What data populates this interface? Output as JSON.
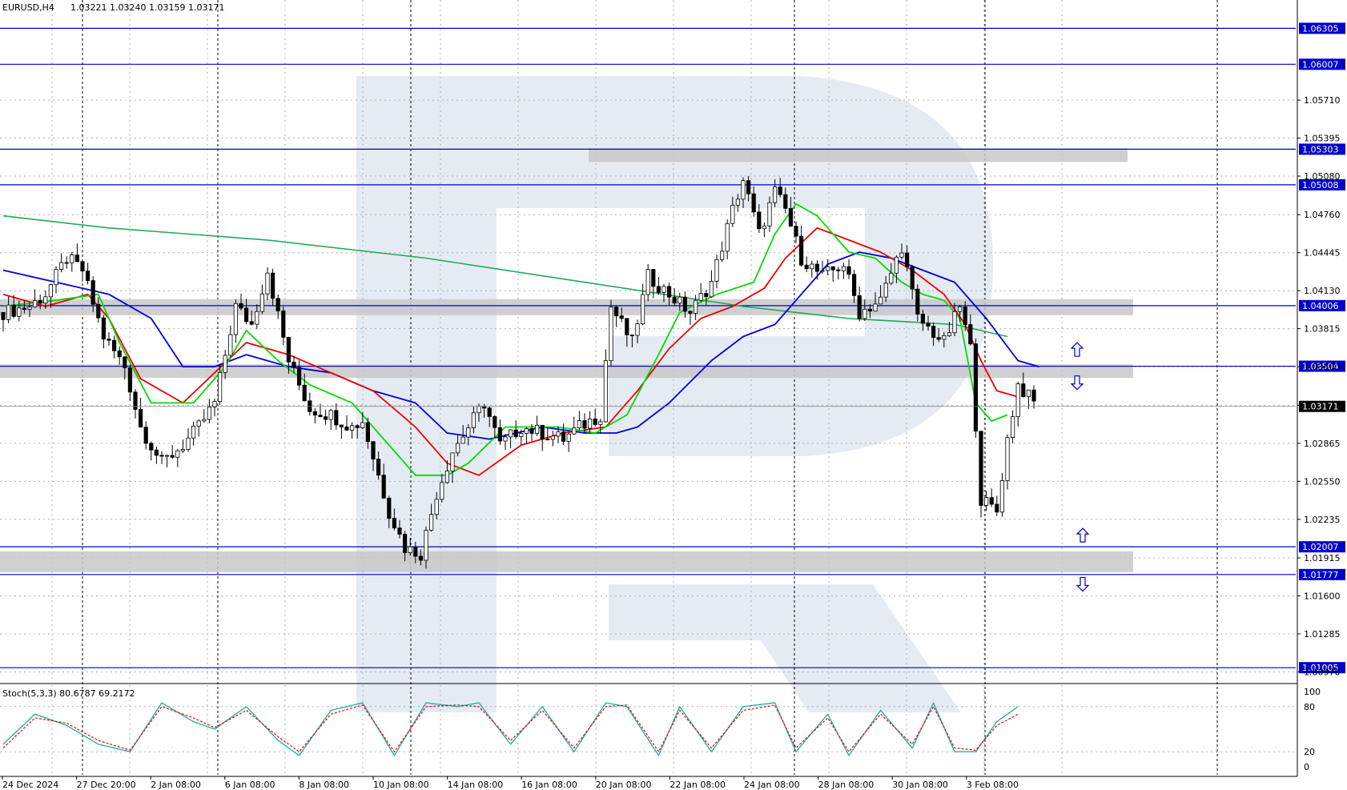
{
  "header": {
    "symbol": "EURUSD,H4",
    "ohlc": "1.03221 1.03240 1.03159 1.03171"
  },
  "indicator": {
    "label": "Stoch(5,3,3) 80.6787 69.2172",
    "levels": [
      "100",
      "80",
      "20",
      "0"
    ]
  },
  "current_price": "1.03171",
  "colors": {
    "bull": "#ffffff",
    "bear": "#000000",
    "level_line": "#0000cc",
    "level_badge": "#0000cc",
    "ma_fast": "#00dd00",
    "ma_mid": "#ee0000",
    "ma_slow": "#0000dd",
    "ma_long": "#22aa55",
    "zone": "#c8c8c8",
    "stoch_main": "#20b2aa",
    "stoch_signal": "#ff0000",
    "watermark": "#dfe6f0",
    "arrow": "#0000cc"
  },
  "chart_data": {
    "type": "candlestick",
    "price_axis": {
      "ticks": [
        "1.05710",
        "1.05395",
        "1.05080",
        "1.04760",
        "1.04445",
        "1.04130",
        "1.03815",
        "1.03500",
        "1.03180",
        "1.02865",
        "1.02550",
        "1.02235",
        "1.01915",
        "1.01600",
        "1.01285",
        "1.00970"
      ],
      "range": [
        1.009,
        1.065
      ]
    },
    "time_axis": {
      "labels": [
        "24 Dec 2024",
        "27 Dec 20:00",
        "2 Jan 08:00",
        "6 Jan 08:00",
        "8 Jan 08:00",
        "10 Jan 08:00",
        "14 Jan 08:00",
        "16 Jan 08:00",
        "20 Jan 08:00",
        "22 Jan 08:00",
        "24 Jan 08:00",
        "28 Jan 08:00",
        "30 Jan 08:00",
        "3 Feb 08:00"
      ]
    },
    "levels": [
      "1.06305",
      "1.06007",
      "1.05303",
      "1.05008",
      "1.04006",
      "1.03504",
      "1.02007",
      "1.01777",
      "1.01005"
    ],
    "zones": [
      {
        "from": 1.0525,
        "to": 1.0531
      },
      {
        "from": 1.0398,
        "to": 1.0406
      },
      {
        "from": 1.0346,
        "to": 1.0352
      },
      {
        "from": 1.0185,
        "to": 1.0197
      }
    ],
    "arrows": [
      {
        "dir": "up",
        "price": 1.0364
      },
      {
        "dir": "down",
        "price": 1.0337
      },
      {
        "dir": "up",
        "price": 1.021
      },
      {
        "dir": "down",
        "price": 1.017
      }
    ],
    "price_path": [
      [
        0,
        1.0395
      ],
      [
        5,
        1.04
      ],
      [
        8,
        1.041
      ],
      [
        12,
        1.044
      ],
      [
        15,
        1.043
      ],
      [
        19,
        1.0375
      ],
      [
        23,
        1.035
      ],
      [
        26,
        1.03
      ],
      [
        30,
        1.027
      ],
      [
        34,
        1.0285
      ],
      [
        37,
        1.03
      ],
      [
        40,
        1.032
      ],
      [
        44,
        1.04
      ],
      [
        47,
        1.0385
      ],
      [
        50,
        1.043
      ],
      [
        54,
        1.0355
      ],
      [
        58,
        1.0315
      ],
      [
        62,
        1.031
      ],
      [
        66,
        1.03
      ],
      [
        68,
        1.0305
      ],
      [
        70,
        1.0275
      ],
      [
        73,
        1.023
      ],
      [
        76,
        1.02
      ],
      [
        79,
        1.0195
      ],
      [
        82,
        1.0245
      ],
      [
        85,
        1.028
      ],
      [
        88,
        1.03
      ],
      [
        91,
        1.032
      ],
      [
        94,
        1.0285
      ],
      [
        98,
        1.03
      ],
      [
        102,
        1.0295
      ],
      [
        106,
        1.029
      ],
      [
        109,
        1.03
      ],
      [
        113,
        1.031
      ],
      [
        115,
        1.04
      ],
      [
        119,
        1.037
      ],
      [
        122,
        1.0425
      ],
      [
        126,
        1.041
      ],
      [
        130,
        1.0395
      ],
      [
        134,
        1.042
      ],
      [
        138,
        1.048
      ],
      [
        140,
        1.0505
      ],
      [
        143,
        1.046
      ],
      [
        146,
        1.0495
      ],
      [
        148,
        1.048
      ],
      [
        151,
        1.044
      ],
      [
        155,
        1.0425
      ],
      [
        159,
        1.0435
      ],
      [
        162,
        1.0395
      ],
      [
        166,
        1.0405
      ],
      [
        170,
        1.045
      ],
      [
        173,
        1.039
      ],
      [
        178,
        1.037
      ],
      [
        181,
        1.04
      ],
      [
        183,
        1.0365
      ],
      [
        185,
        1.024
      ],
      [
        188,
        1.023
      ],
      [
        190,
        1.029
      ],
      [
        192,
        1.0335
      ],
      [
        195,
        1.032
      ]
    ],
    "ma_fast": [
      [
        0,
        1.04
      ],
      [
        10,
        1.0405
      ],
      [
        18,
        1.041
      ],
      [
        22,
        1.037
      ],
      [
        28,
        1.032
      ],
      [
        36,
        1.032
      ],
      [
        42,
        1.035
      ],
      [
        46,
        1.038
      ],
      [
        52,
        1.0355
      ],
      [
        58,
        1.0335
      ],
      [
        66,
        1.032
      ],
      [
        72,
        1.029
      ],
      [
        78,
        1.026
      ],
      [
        84,
        1.026
      ],
      [
        88,
        1.027
      ],
      [
        95,
        1.03
      ],
      [
        105,
        1.03
      ],
      [
        112,
        1.0295
      ],
      [
        118,
        1.031
      ],
      [
        124,
        1.036
      ],
      [
        128,
        1.0395
      ],
      [
        135,
        1.041
      ],
      [
        142,
        1.042
      ],
      [
        146,
        1.046
      ],
      [
        150,
        1.0485
      ],
      [
        154,
        1.0475
      ],
      [
        160,
        1.0445
      ],
      [
        165,
        1.044
      ],
      [
        170,
        1.042
      ],
      [
        174,
        1.041
      ],
      [
        178,
        1.0405
      ],
      [
        181,
        1.039
      ],
      [
        184,
        1.032
      ],
      [
        187,
        1.0305
      ],
      [
        190,
        1.031
      ]
    ],
    "ma_mid": [
      [
        0,
        1.041
      ],
      [
        8,
        1.04
      ],
      [
        16,
        1.041
      ],
      [
        20,
        1.039
      ],
      [
        26,
        1.034
      ],
      [
        34,
        1.032
      ],
      [
        40,
        1.0345
      ],
      [
        46,
        1.037
      ],
      [
        54,
        1.036
      ],
      [
        62,
        1.0345
      ],
      [
        70,
        1.033
      ],
      [
        78,
        1.03
      ],
      [
        84,
        1.027
      ],
      [
        90,
        1.026
      ],
      [
        98,
        1.0285
      ],
      [
        106,
        1.0295
      ],
      [
        114,
        1.03
      ],
      [
        120,
        1.033
      ],
      [
        126,
        1.0365
      ],
      [
        132,
        1.039
      ],
      [
        138,
        1.04
      ],
      [
        144,
        1.0415
      ],
      [
        148,
        1.044
      ],
      [
        154,
        1.0465
      ],
      [
        160,
        1.0455
      ],
      [
        166,
        1.0445
      ],
      [
        172,
        1.043
      ],
      [
        178,
        1.041
      ],
      [
        182,
        1.0385
      ],
      [
        185,
        1.0355
      ],
      [
        188,
        1.033
      ],
      [
        192,
        1.0325
      ]
    ],
    "ma_slow": [
      [
        0,
        1.043
      ],
      [
        10,
        1.042
      ],
      [
        20,
        1.041
      ],
      [
        28,
        1.039
      ],
      [
        34,
        1.035
      ],
      [
        40,
        1.035
      ],
      [
        46,
        1.036
      ],
      [
        54,
        1.035
      ],
      [
        62,
        1.0345
      ],
      [
        70,
        1.033
      ],
      [
        78,
        1.032
      ],
      [
        84,
        1.0295
      ],
      [
        92,
        1.029
      ],
      [
        102,
        1.03
      ],
      [
        110,
        1.0295
      ],
      [
        116,
        1.0295
      ],
      [
        120,
        1.03
      ],
      [
        126,
        1.032
      ],
      [
        134,
        1.0355
      ],
      [
        140,
        1.0375
      ],
      [
        146,
        1.0385
      ],
      [
        150,
        1.0405
      ],
      [
        156,
        1.0435
      ],
      [
        162,
        1.0445
      ],
      [
        168,
        1.044
      ],
      [
        174,
        1.043
      ],
      [
        180,
        1.042
      ],
      [
        186,
        1.039
      ],
      [
        192,
        1.0355
      ],
      [
        196,
        1.035
      ]
    ],
    "ma_long": [
      [
        0,
        1.0475
      ],
      [
        20,
        1.0465
      ],
      [
        50,
        1.0455
      ],
      [
        80,
        1.044
      ],
      [
        110,
        1.042
      ],
      [
        140,
        1.04
      ],
      [
        160,
        1.039
      ],
      [
        180,
        1.0385
      ],
      [
        190,
        1.0375
      ]
    ],
    "stoch_main": [
      [
        0,
        30
      ],
      [
        6,
        70
      ],
      [
        12,
        55
      ],
      [
        18,
        30
      ],
      [
        24,
        20
      ],
      [
        30,
        85
      ],
      [
        36,
        60
      ],
      [
        40,
        50
      ],
      [
        46,
        80
      ],
      [
        52,
        35
      ],
      [
        56,
        15
      ],
      [
        62,
        75
      ],
      [
        68,
        85
      ],
      [
        74,
        15
      ],
      [
        80,
        85
      ],
      [
        86,
        80
      ],
      [
        90,
        85
      ],
      [
        96,
        30
      ],
      [
        102,
        80
      ],
      [
        108,
        20
      ],
      [
        114,
        85
      ],
      [
        118,
        80
      ],
      [
        124,
        15
      ],
      [
        128,
        80
      ],
      [
        134,
        20
      ],
      [
        140,
        80
      ],
      [
        146,
        85
      ],
      [
        150,
        20
      ],
      [
        156,
        70
      ],
      [
        160,
        15
      ],
      [
        166,
        75
      ],
      [
        172,
        25
      ],
      [
        176,
        85
      ],
      [
        180,
        20
      ],
      [
        184,
        20
      ],
      [
        188,
        60
      ],
      [
        192,
        80
      ]
    ],
    "stoch_signal": [
      [
        0,
        25
      ],
      [
        6,
        65
      ],
      [
        12,
        58
      ],
      [
        18,
        35
      ],
      [
        24,
        22
      ],
      [
        30,
        80
      ],
      [
        36,
        65
      ],
      [
        40,
        52
      ],
      [
        46,
        75
      ],
      [
        52,
        40
      ],
      [
        56,
        20
      ],
      [
        62,
        70
      ],
      [
        68,
        82
      ],
      [
        74,
        20
      ],
      [
        80,
        80
      ],
      [
        86,
        82
      ],
      [
        90,
        80
      ],
      [
        96,
        35
      ],
      [
        102,
        75
      ],
      [
        108,
        25
      ],
      [
        114,
        80
      ],
      [
        118,
        82
      ],
      [
        124,
        20
      ],
      [
        128,
        75
      ],
      [
        134,
        25
      ],
      [
        140,
        75
      ],
      [
        146,
        82
      ],
      [
        150,
        25
      ],
      [
        156,
        65
      ],
      [
        160,
        20
      ],
      [
        166,
        70
      ],
      [
        172,
        30
      ],
      [
        176,
        80
      ],
      [
        180,
        25
      ],
      [
        184,
        22
      ],
      [
        188,
        55
      ],
      [
        192,
        70
      ]
    ]
  }
}
